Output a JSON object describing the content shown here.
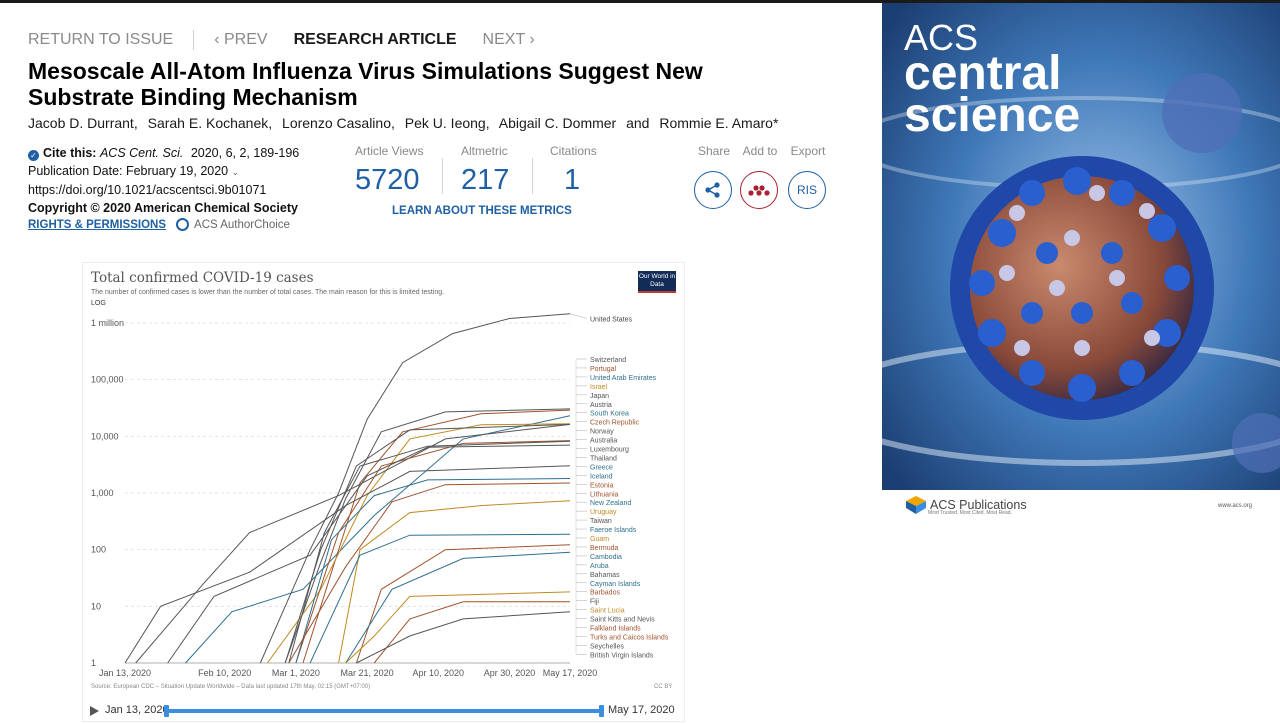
{
  "nav": {
    "return": "RETURN TO ISSUE",
    "prev": "PREV",
    "article_type": "RESEARCH ARTICLE",
    "next": "NEXT"
  },
  "article": {
    "title": "Mesoscale All-Atom Influenza Virus Simulations Suggest New Substrate Binding Mechanism",
    "authors": [
      "Jacob D. Durrant,",
      "Sarah E. Kochanek,",
      "Lorenzo Casalino,",
      "Pek U. Ieong,",
      "Abigail C. Dommer",
      "and",
      "Rommie E. Amaro*"
    ],
    "cite_label": "Cite this:",
    "cite_journal": "ACS Cent. Sci.",
    "cite_ref": "2020, 6, 2, 189-196",
    "pub_date": "Publication Date: February 19, 2020",
    "doi": "https://doi.org/10.1021/acscentsci.9b01071",
    "copyright": "Copyright © 2020 American Chemical Society",
    "rights": "RIGHTS & PERMISSIONS",
    "author_choice": "ACS AuthorChoice"
  },
  "metrics": {
    "views_label": "Article Views",
    "views": "5720",
    "altmetric_label": "Altmetric",
    "altmetric": "217",
    "citations_label": "Citations",
    "citations": "1",
    "learn": "LEARN ABOUT THESE METRICS"
  },
  "actions": {
    "share": "Share",
    "add_to": "Add to",
    "export": "Export",
    "ris": "RIS"
  },
  "chart_data": {
    "type": "line",
    "title": "Total confirmed COVID-19 cases",
    "subtitle": "The number of confirmed cases is lower than the number of total cases. The main reason for this is limited testing.",
    "scale_label": "LOG",
    "y_scale": "log",
    "ylim": [
      1,
      1500000
    ],
    "y_ticks": [
      1,
      10,
      100,
      1000,
      10000,
      100000,
      1000000
    ],
    "y_tick_labels": [
      "1",
      "10",
      "100",
      "1,000",
      "10,000",
      "100,000",
      "1 million"
    ],
    "x_tick_labels": [
      "Jan 13, 2020",
      "Feb 10, 2020",
      "Mar 1, 2020",
      "Mar 21, 2020",
      "Apr 10, 2020",
      "Apr 30, 2020",
      "May 17, 2020"
    ],
    "x_tick_days": [
      0,
      28,
      48,
      68,
      88,
      108,
      125
    ],
    "xlim": [
      0,
      125
    ],
    "source": "Source: European CDC – Situation Update Worldwide – Data last updated 17th May, 02:15 (GMT+07:00)",
    "license": "CC BY",
    "series": [
      {
        "name": "United States",
        "color": "#555555",
        "points": [
          [
            38,
            1
          ],
          [
            52,
            100
          ],
          [
            60,
            1000
          ],
          [
            68,
            20000
          ],
          [
            78,
            200000
          ],
          [
            92,
            650000
          ],
          [
            108,
            1200000
          ],
          [
            125,
            1450000
          ]
        ]
      },
      {
        "name": "Switzerland",
        "color": "#555555",
        "points": [
          [
            45,
            1
          ],
          [
            55,
            60
          ],
          [
            62,
            800
          ],
          [
            72,
            12000
          ],
          [
            90,
            27000
          ],
          [
            125,
            30500
          ]
        ]
      },
      {
        "name": "Portugal",
        "color": "#a0522d",
        "points": [
          [
            50,
            1
          ],
          [
            58,
            40
          ],
          [
            66,
            1500
          ],
          [
            78,
            12000
          ],
          [
            100,
            25000
          ],
          [
            125,
            29000
          ]
        ]
      },
      {
        "name": "United Arab Emirates",
        "color": "#2e6f8e",
        "points": [
          [
            17,
            1
          ],
          [
            30,
            8
          ],
          [
            50,
            20
          ],
          [
            70,
            400
          ],
          [
            95,
            9000
          ],
          [
            125,
            23000
          ]
        ]
      },
      {
        "name": "Israel",
        "color": "#c08a20",
        "points": [
          [
            40,
            1
          ],
          [
            55,
            20
          ],
          [
            68,
            900
          ],
          [
            80,
            9000
          ],
          [
            100,
            16000
          ],
          [
            125,
            16600
          ]
        ]
      },
      {
        "name": "Japan",
        "color": "#555555",
        "points": [
          [
            3,
            1
          ],
          [
            22,
            25
          ],
          [
            35,
            200
          ],
          [
            60,
            900
          ],
          [
            90,
            9000
          ],
          [
            125,
            16200
          ]
        ]
      },
      {
        "name": "Austria",
        "color": "#555555",
        "points": [
          [
            45,
            1
          ],
          [
            55,
            100
          ],
          [
            65,
            3000
          ],
          [
            80,
            13000
          ],
          [
            125,
            16200
          ]
        ]
      },
      {
        "name": "Czech Republic",
        "color": "#a0522d",
        "points": [
          [
            48,
            1
          ],
          [
            60,
            200
          ],
          [
            72,
            3000
          ],
          [
            95,
            7500
          ],
          [
            125,
            8400
          ]
        ]
      },
      {
        "name": "Norway",
        "color": "#555555",
        "points": [
          [
            46,
            1
          ],
          [
            56,
            200
          ],
          [
            66,
            3000
          ],
          [
            85,
            6700
          ],
          [
            125,
            8200
          ]
        ]
      },
      {
        "name": "Australia",
        "color": "#555555",
        "points": [
          [
            12,
            1
          ],
          [
            25,
            15
          ],
          [
            52,
            80
          ],
          [
            68,
            2000
          ],
          [
            85,
            6400
          ],
          [
            125,
            7000
          ]
        ]
      },
      {
        "name": "Thailand",
        "color": "#555555",
        "points": [
          [
            0,
            1
          ],
          [
            10,
            10
          ],
          [
            35,
            40
          ],
          [
            62,
            600
          ],
          [
            80,
            2400
          ],
          [
            125,
            3020
          ]
        ]
      },
      {
        "name": "Iceland",
        "color": "#2e6f8e",
        "points": [
          [
            48,
            1
          ],
          [
            58,
            150
          ],
          [
            70,
            900
          ],
          [
            85,
            1700
          ],
          [
            125,
            1800
          ]
        ]
      },
      {
        "name": "New Zealand",
        "color": "#a0522d",
        "points": [
          [
            46,
            1
          ],
          [
            62,
            50
          ],
          [
            75,
            700
          ],
          [
            90,
            1400
          ],
          [
            125,
            1500
          ]
        ]
      },
      {
        "name": "Uruguay",
        "color": "#c08a20",
        "points": [
          [
            60,
            1
          ],
          [
            66,
            100
          ],
          [
            80,
            450
          ],
          [
            100,
            600
          ],
          [
            125,
            730
          ]
        ]
      },
      {
        "name": "Faeroe Islands",
        "color": "#2e6f8e",
        "points": [
          [
            52,
            1
          ],
          [
            66,
            80
          ],
          [
            80,
            180
          ],
          [
            125,
            187
          ]
        ]
      },
      {
        "name": "Bermuda",
        "color": "#a0522d",
        "points": [
          [
            65,
            1
          ],
          [
            72,
            20
          ],
          [
            90,
            100
          ],
          [
            125,
            122
          ]
        ]
      },
      {
        "name": "Cayman Islands",
        "color": "#2e6f8e",
        "points": [
          [
            62,
            1
          ],
          [
            75,
            20
          ],
          [
            95,
            70
          ],
          [
            125,
            90
          ]
        ]
      },
      {
        "name": "Saint Lucia",
        "color": "#c08a20",
        "points": [
          [
            62,
            1
          ],
          [
            70,
            3
          ],
          [
            80,
            15
          ],
          [
            125,
            18
          ]
        ]
      },
      {
        "name": "Turks and Caicos Islands",
        "color": "#a0522d",
        "points": [
          [
            70,
            1
          ],
          [
            80,
            6
          ],
          [
            95,
            12
          ],
          [
            125,
            12
          ]
        ]
      },
      {
        "name": "British Virgin Islands",
        "color": "#555555",
        "points": [
          [
            65,
            1
          ],
          [
            80,
            3
          ],
          [
            95,
            6
          ],
          [
            125,
            8
          ]
        ]
      }
    ],
    "legend_labels": [
      "United States",
      "Switzerland",
      "Portugal",
      "United Arab Emirates",
      "Israel",
      "Japan",
      "Austria",
      "South Korea",
      "Czech Republic",
      "Norway",
      "Australia",
      "Luxembourg",
      "Thailand",
      "Greece",
      "Iceland",
      "Estonia",
      "Lithuania",
      "New Zealand",
      "Uruguay",
      "Taiwan",
      "Faeroe Islands",
      "Guam",
      "Bermuda",
      "Cambodia",
      "Aruba",
      "Bahamas",
      "Cayman Islands",
      "Barbados",
      "Fiji",
      "Saint Lucia",
      "Saint Kitts and Nevis",
      "Falkland Islands",
      "Turks and Caicos Islands",
      "Seychelles",
      "British Virgin Islands"
    ],
    "legend_colors": [
      "#555",
      "#555",
      "#a0522d",
      "#2e6f8e",
      "#c08a20",
      "#555",
      "#555",
      "#2e6f8e",
      "#a0522d",
      "#555",
      "#555",
      "#555",
      "#555",
      "#2e6f8e",
      "#2e6f8e",
      "#a0522d",
      "#a0522d",
      "#2e6f8e",
      "#c08a20",
      "#555",
      "#2e6f8e",
      "#c08a20",
      "#a0522d",
      "#2e6f8e",
      "#2e6f8e",
      "#555",
      "#2e6f8e",
      "#a0522d",
      "#555",
      "#c08a20",
      "#555",
      "#a0522d",
      "#a0522d",
      "#555",
      "#555"
    ],
    "owid_logo": "Our World in Data"
  },
  "timeline": {
    "start": "Jan 13, 2020",
    "end": "May 17, 2020"
  },
  "cover": {
    "line1": "ACS",
    "line2": "central",
    "line3": "science",
    "publisher": "ACS Publications",
    "tagline": "Most Trusted. Most Cited. Most Read.",
    "url": "www.acs.org"
  },
  "colors": {
    "accent": "#1f5fa3",
    "addto_red": "#a8222e"
  }
}
